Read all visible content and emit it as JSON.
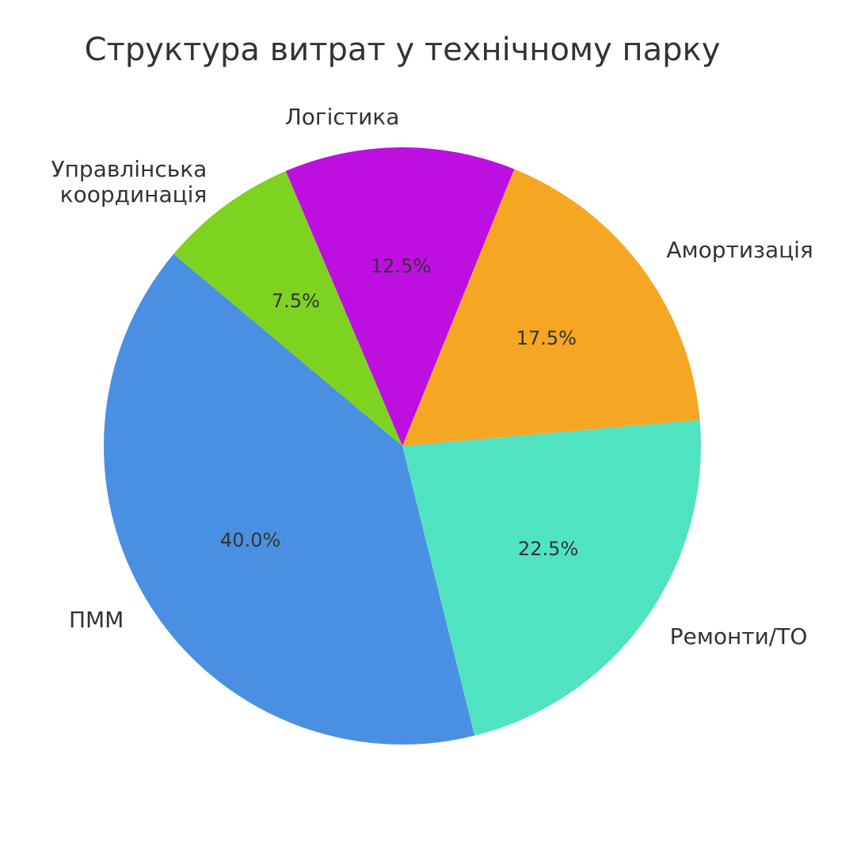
{
  "chart_data": {
    "type": "pie",
    "title": "Структура витрат у технічному парку",
    "categories": [
      "ПММ",
      "Ремонти/ТО",
      "Амортизація",
      "Логістика",
      "Управлінська\nкоординація"
    ],
    "values": [
      40,
      22.5,
      17.5,
      12.5,
      7.5
    ],
    "value_labels": [
      "40.0%",
      "22.5%",
      "17.5%",
      "12.5%",
      "7.5%"
    ],
    "colors": [
      "#4a90e2",
      "#50e3c2",
      "#f5a623",
      "#bd10e0",
      "#7ed321"
    ]
  }
}
